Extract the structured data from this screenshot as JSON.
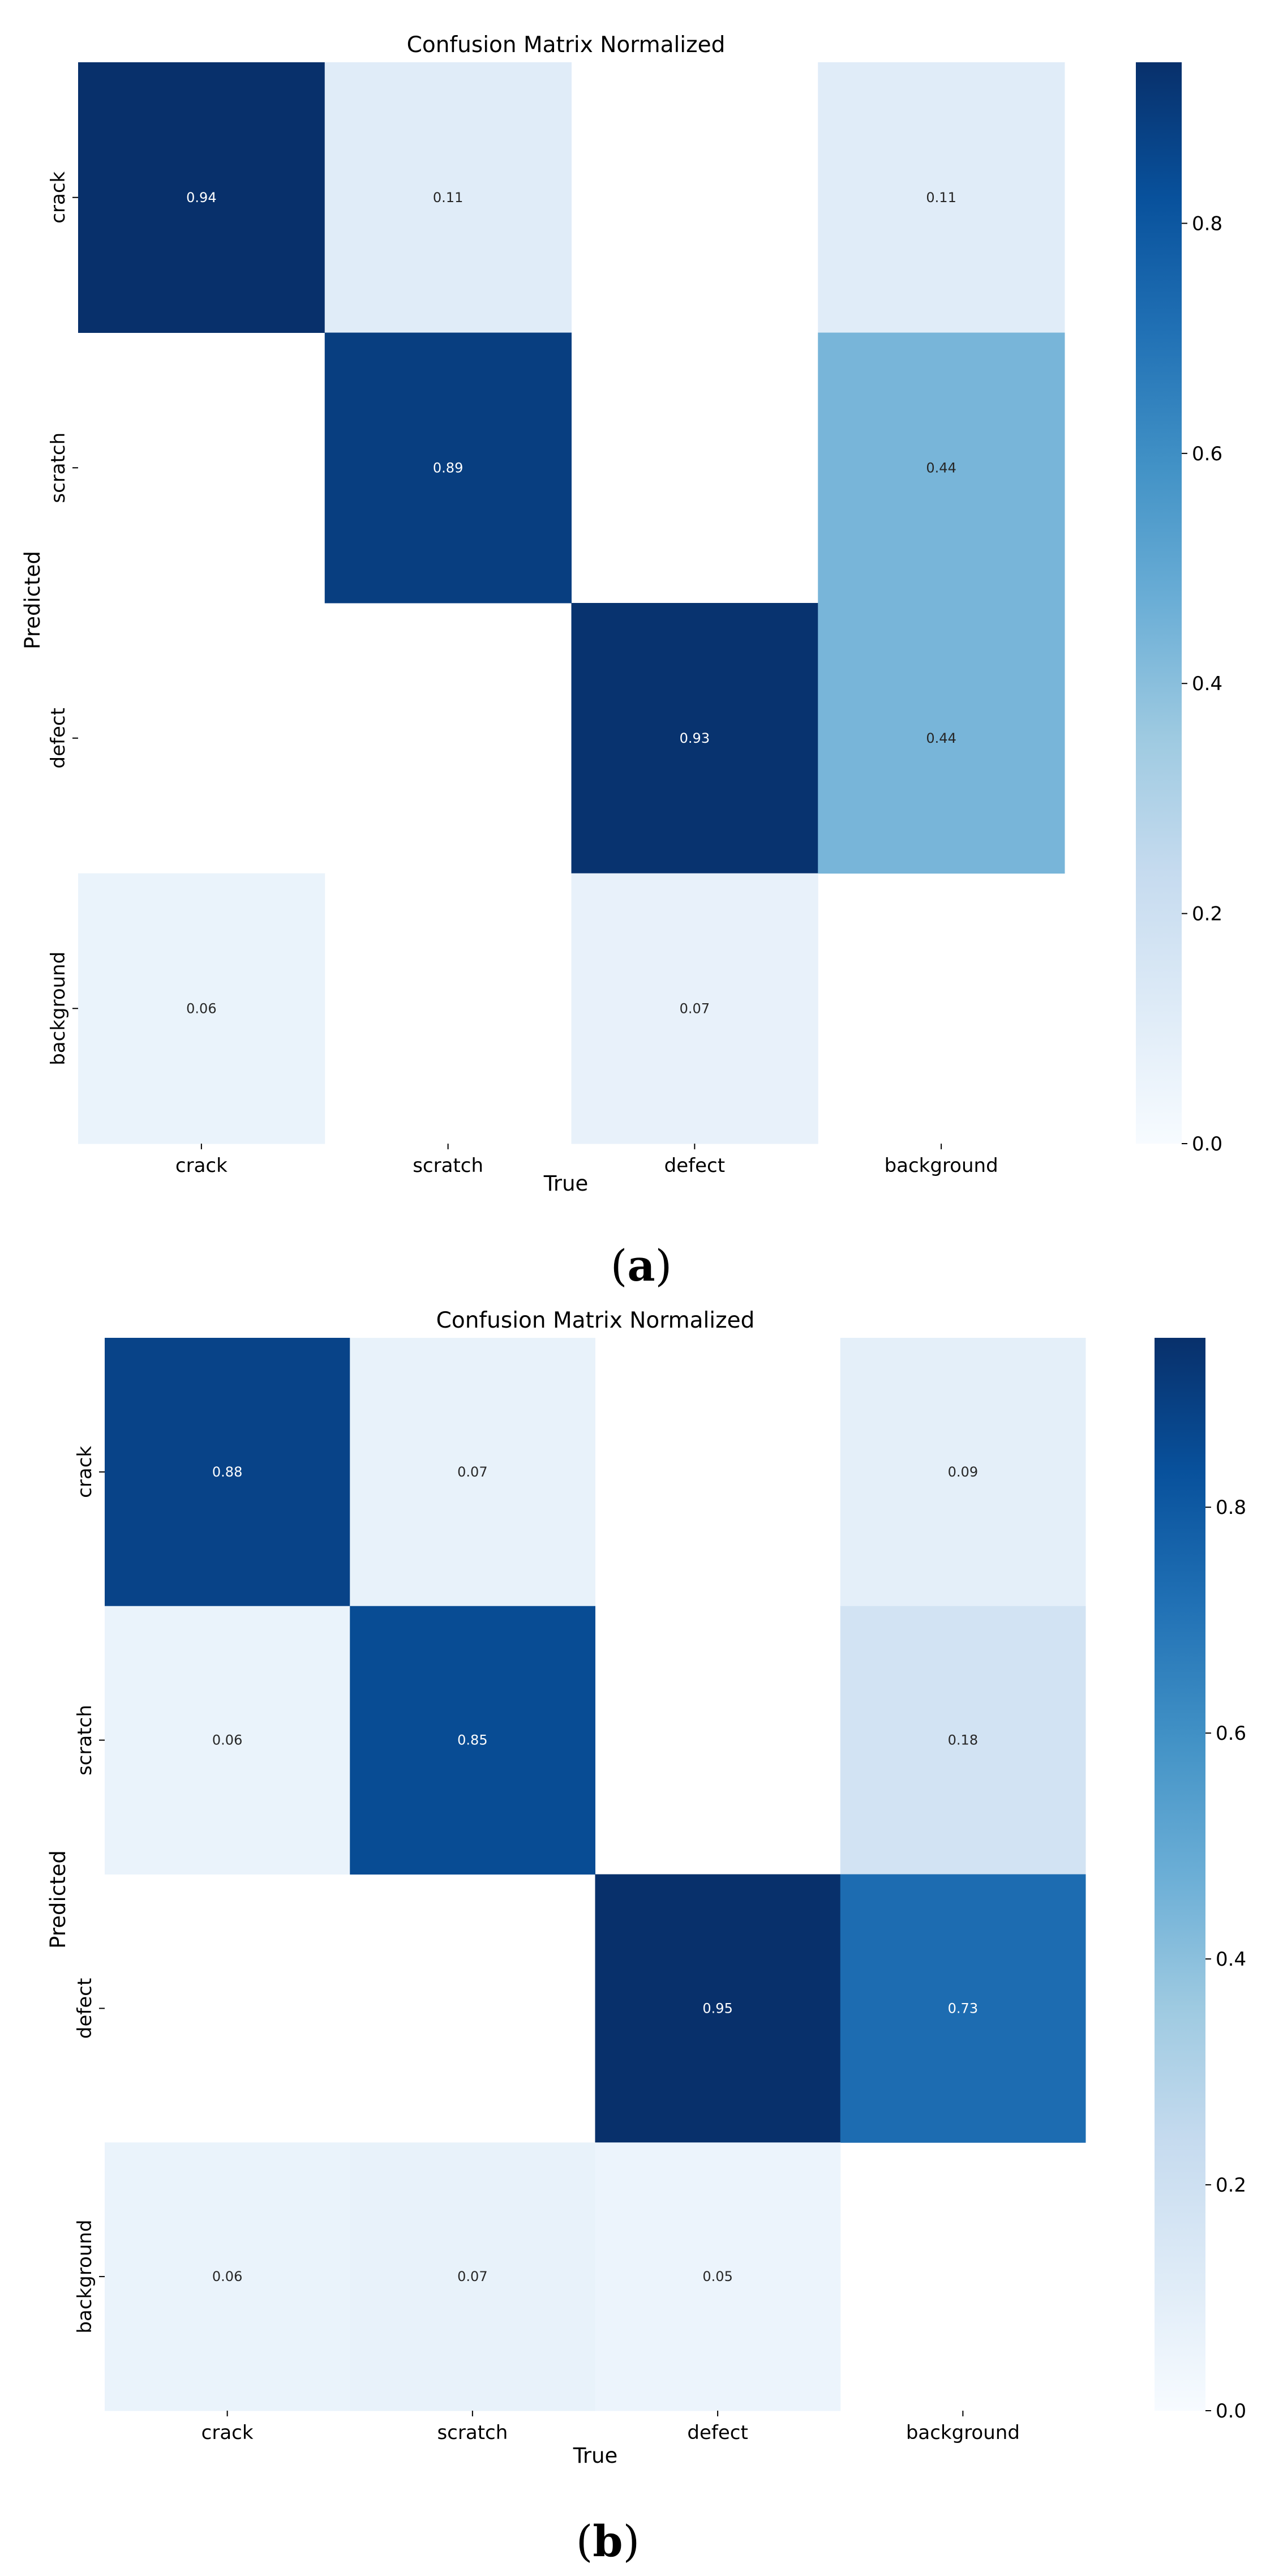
{
  "chart_data": [
    {
      "type": "heatmap",
      "title": "Confusion Matrix Normalized",
      "xlabel": "True",
      "ylabel": "Predicted",
      "categories_x": [
        "crack",
        "scratch",
        "defect",
        "background"
      ],
      "categories_y": [
        "crack",
        "scratch",
        "defect",
        "background"
      ],
      "values": [
        [
          0.94,
          0.11,
          null,
          0.11
        ],
        [
          null,
          0.89,
          null,
          0.44
        ],
        [
          null,
          null,
          0.93,
          0.44
        ],
        [
          0.06,
          null,
          0.07,
          null
        ]
      ],
      "colorbar": {
        "min": 0.0,
        "max": 0.94,
        "ticks": [
          "0.0",
          "0.2",
          "0.4",
          "0.6",
          "0.8"
        ],
        "tick_values": [
          0,
          0.2,
          0.4,
          0.6,
          0.8
        ]
      },
      "colormap": "Blues",
      "panel_label": "a"
    },
    {
      "type": "heatmap",
      "title": "Confusion Matrix Normalized",
      "xlabel": "True",
      "ylabel": "Predicted",
      "categories_x": [
        "crack",
        "scratch",
        "defect",
        "background"
      ],
      "categories_y": [
        "crack",
        "scratch",
        "defect",
        "background"
      ],
      "values": [
        [
          0.88,
          0.07,
          null,
          0.09
        ],
        [
          0.06,
          0.85,
          null,
          0.18
        ],
        [
          null,
          null,
          0.95,
          0.73
        ],
        [
          0.06,
          0.07,
          0.05,
          null
        ]
      ],
      "colorbar": {
        "min": 0.0,
        "max": 0.95,
        "ticks": [
          "0.0",
          "0.2",
          "0.4",
          "0.6",
          "0.8"
        ],
        "tick_values": [
          0,
          0.2,
          0.4,
          0.6,
          0.8
        ]
      },
      "colormap": "Blues",
      "panel_label": "b"
    }
  ]
}
